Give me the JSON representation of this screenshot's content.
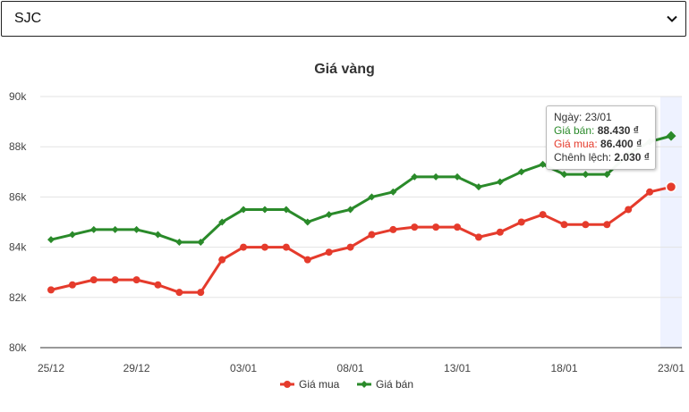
{
  "selector": {
    "value": "SJC"
  },
  "colors": {
    "buy": "#e53b2c",
    "sell": "#2a8a2a",
    "highlight": "#eef2ff"
  },
  "chart_data": {
    "type": "line",
    "title": "Giá vàng",
    "xlabel": "",
    "ylabel": "",
    "ylim": [
      80,
      90
    ],
    "yticks": [
      80,
      82,
      84,
      86,
      88,
      90
    ],
    "ytick_labels": [
      "80k",
      "82k",
      "84k",
      "86k",
      "88k",
      "90k"
    ],
    "xtick_labels": [
      "25/12",
      "29/12",
      "03/01",
      "08/01",
      "13/01",
      "18/01",
      "23/01"
    ],
    "xtick_positions": [
      0,
      4,
      9,
      14,
      19,
      24,
      29
    ],
    "grid": "horizontal",
    "legend_position": "bottom",
    "highlight_index": 29,
    "series": [
      {
        "name": "Giá mua",
        "color": "#e53b2c",
        "marker": "circle",
        "values": [
          82.3,
          82.5,
          82.7,
          82.7,
          82.7,
          82.5,
          82.2,
          82.2,
          83.5,
          84.0,
          84.0,
          84.0,
          83.5,
          83.8,
          84.0,
          84.5,
          84.7,
          84.8,
          84.8,
          84.8,
          84.4,
          84.6,
          85.0,
          85.3,
          84.9,
          84.9,
          84.9,
          85.5,
          86.2,
          86.4
        ]
      },
      {
        "name": "Giá bán",
        "color": "#2a8a2a",
        "marker": "diamond",
        "values": [
          84.3,
          84.5,
          84.7,
          84.7,
          84.7,
          84.5,
          84.2,
          84.2,
          85.0,
          85.5,
          85.5,
          85.5,
          85.0,
          85.3,
          85.5,
          86.0,
          86.2,
          86.8,
          86.8,
          86.8,
          86.4,
          86.6,
          87.0,
          87.3,
          86.9,
          86.9,
          86.9,
          87.7,
          88.2,
          88.43
        ]
      }
    ]
  },
  "tooltip": {
    "date_label": "Ngày:",
    "date_value": "23/01",
    "sell_label": "Giá bán:",
    "sell_value": "88.430 ₫",
    "buy_label": "Giá mua:",
    "buy_value": "86.400 ₫",
    "diff_label": "Chênh lệch:",
    "diff_value": "2.030 ₫"
  }
}
